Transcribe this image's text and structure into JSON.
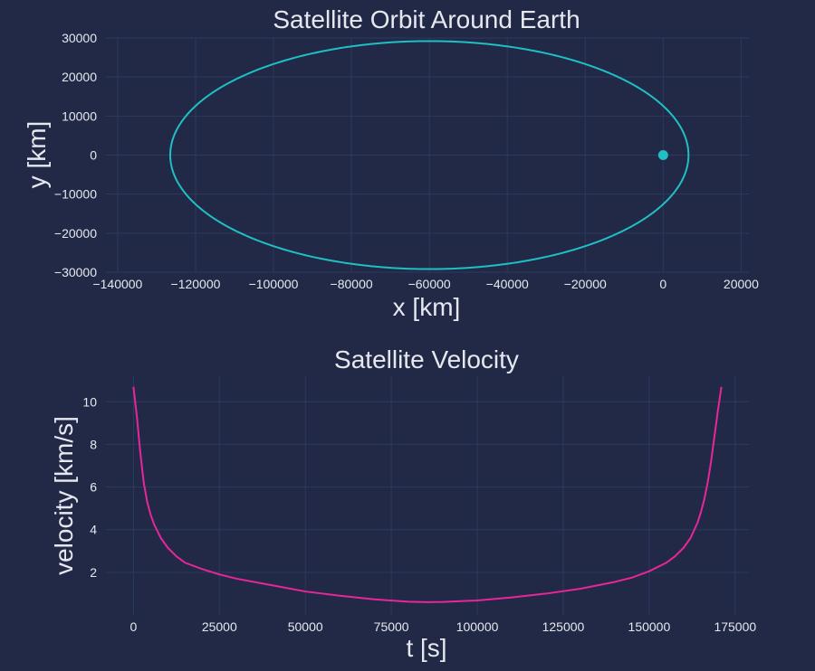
{
  "chart_data": [
    {
      "type": "line",
      "title": "Satellite Orbit Around Earth",
      "xlabel": "x [km]",
      "ylabel": "y [km]",
      "xlim": [
        -143000,
        22000
      ],
      "ylim": [
        -30000,
        30000
      ],
      "x_ticks": [
        -140000,
        -120000,
        -100000,
        -80000,
        -60000,
        -40000,
        -20000,
        0,
        20000
      ],
      "y_ticks": [
        -30000,
        -20000,
        -10000,
        0,
        10000,
        20000,
        30000
      ],
      "x_tick_labels": [
        "−140000",
        "−120000",
        "−100000",
        "−80000",
        "−60000",
        "−40000",
        "−20000",
        "0",
        "20000"
      ],
      "y_tick_labels": [
        "−30000",
        "−20000",
        "−10000",
        "0",
        "10000",
        "20000",
        "30000"
      ],
      "grid": true,
      "series": [
        {
          "kind": "ellipse-orbit",
          "color": "#1fbfc4",
          "center_x": -60000,
          "center_y": 0,
          "semi_major": 66500,
          "semi_minor": 29200
        }
      ],
      "marker": {
        "label": "Earth",
        "x": 0,
        "y": 0,
        "color": "#1fbfc4"
      }
    },
    {
      "type": "line",
      "title": "Satellite Velocity",
      "xlabel": "t [s]",
      "ylabel": "velocity [km/s]",
      "xlim": [
        -8000,
        179000
      ],
      "ylim": [
        0.0,
        11.2
      ],
      "x_ticks": [
        0,
        25000,
        50000,
        75000,
        100000,
        125000,
        150000,
        175000
      ],
      "y_ticks": [
        2,
        4,
        6,
        8,
        10
      ],
      "x_tick_labels": [
        "0",
        "25000",
        "50000",
        "75000",
        "100000",
        "125000",
        "150000",
        "175000"
      ],
      "y_tick_labels": [
        "2",
        "4",
        "6",
        "8",
        "10"
      ],
      "grid": true,
      "series": [
        {
          "color": "#e8269a",
          "x": [
            0,
            1000,
            2000,
            3000,
            4000,
            5000,
            6000,
            8000,
            10000,
            12500,
            15000,
            20000,
            25000,
            30000,
            40000,
            50000,
            60000,
            70000,
            80000,
            85500,
            90000,
            100000,
            110000,
            120000,
            130000,
            140000,
            145000,
            150000,
            155000,
            157500,
            160000,
            162000,
            163000,
            164000,
            165000,
            166000,
            167000,
            168000,
            169000,
            170000,
            171000
          ],
          "values": [
            10.7,
            9.3,
            7.6,
            6.2,
            5.3,
            4.7,
            4.25,
            3.6,
            3.15,
            2.75,
            2.45,
            2.15,
            1.9,
            1.7,
            1.4,
            1.1,
            0.9,
            0.73,
            0.62,
            0.6,
            0.61,
            0.68,
            0.82,
            1.0,
            1.23,
            1.55,
            1.75,
            2.05,
            2.45,
            2.75,
            3.15,
            3.6,
            3.95,
            4.3,
            4.8,
            5.4,
            6.2,
            7.2,
            8.4,
            9.6,
            10.7
          ]
        }
      ]
    }
  ]
}
